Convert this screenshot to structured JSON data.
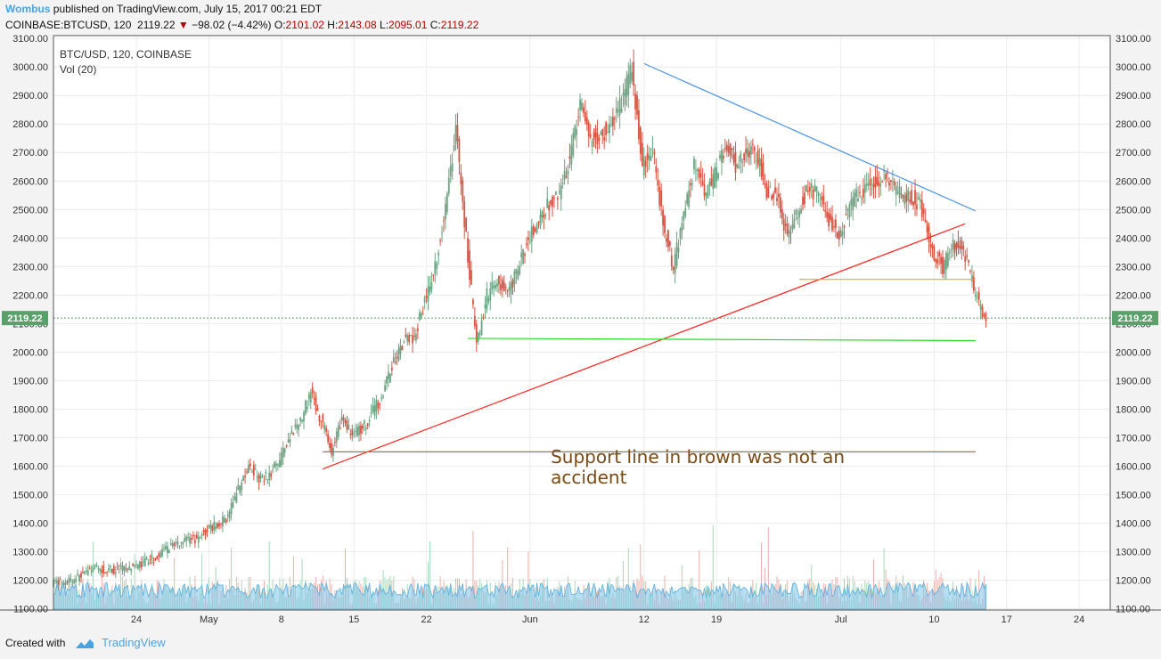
{
  "header": {
    "author": "Wombus",
    "published_text": " published on TradingView.com, July 15, 2017 00:21 EDT",
    "symbol_line": "COINBASE:BTCUSD, 120",
    "last_price": "2119.22",
    "change_arrow": "▼",
    "change": "−98.02 (−4.42%)",
    "o_label": "O:",
    "o_value": "2101.02",
    "h_label": "H:",
    "h_value": "2143.08",
    "l_label": "L:",
    "l_value": "2095.01",
    "c_label": "C:",
    "c_value": "2119.22"
  },
  "footer": {
    "created_with": "Created with",
    "brand": "TradingView"
  },
  "colors": {
    "up": "#6ba583",
    "down": "#d75442",
    "volume": "#7cc3e8",
    "trend_down": "#4a90e2",
    "trend_up": "#ff2222",
    "support_orange": "#ffa500",
    "support_green": "#22dd22",
    "support_brown": "#9c7a4c",
    "price_tag": "#5aa06a",
    "annotation": "#7a4a14"
  },
  "chart_data": {
    "type": "candlestick",
    "title": "BTC/USD, 120, COINBASE",
    "indicator_label": "Vol (20)",
    "x_tick_labels": [
      "24",
      "May",
      "8",
      "15",
      "22",
      "Jun",
      "12",
      "19",
      "Jul",
      "10",
      "17",
      "24"
    ],
    "x_tick_dates": [
      "2017-04-24",
      "2017-05-01",
      "2017-05-08",
      "2017-05-15",
      "2017-05-22",
      "2017-06-01",
      "2017-06-12",
      "2017-06-19",
      "2017-07-01",
      "2017-07-10",
      "2017-07-17",
      "2017-07-24"
    ],
    "x_range": [
      "2017-04-16",
      "2017-07-27"
    ],
    "y_tick_labels": [
      "1100.00",
      "1200.00",
      "1300.00",
      "1400.00",
      "1500.00",
      "1600.00",
      "1700.00",
      "1800.00",
      "1900.00",
      "2000.00",
      "2100.00",
      "2200.00",
      "2300.00",
      "2400.00",
      "2500.00",
      "2600.00",
      "2700.00",
      "2800.00",
      "2900.00",
      "3000.00",
      "3100.00"
    ],
    "ylim": [
      1095,
      3110
    ],
    "last_price": 2119.22,
    "price_path": [
      [
        "2017-04-16",
        1190
      ],
      [
        "2017-04-18",
        1200
      ],
      [
        "2017-04-20",
        1240
      ],
      [
        "2017-04-22",
        1235
      ],
      [
        "2017-04-24",
        1245
      ],
      [
        "2017-04-26",
        1280
      ],
      [
        "2017-04-28",
        1330
      ],
      [
        "2017-04-30",
        1345
      ],
      [
        "2017-05-01",
        1375
      ],
      [
        "2017-05-03",
        1420
      ],
      [
        "2017-05-04",
        1520
      ],
      [
        "2017-05-05",
        1600
      ],
      [
        "2017-05-06",
        1560
      ],
      [
        "2017-05-07",
        1570
      ],
      [
        "2017-05-08",
        1620
      ],
      [
        "2017-05-09",
        1700
      ],
      [
        "2017-05-10",
        1760
      ],
      [
        "2017-05-11",
        1860
      ],
      [
        "2017-05-12",
        1760
      ],
      [
        "2017-05-13",
        1650
      ],
      [
        "2017-05-14",
        1760
      ],
      [
        "2017-05-15",
        1720
      ],
      [
        "2017-05-16",
        1730
      ],
      [
        "2017-05-17",
        1790
      ],
      [
        "2017-05-18",
        1860
      ],
      [
        "2017-05-19",
        1960
      ],
      [
        "2017-05-20",
        2040
      ],
      [
        "2017-05-21",
        2050
      ],
      [
        "2017-05-22",
        2180
      ],
      [
        "2017-05-23",
        2300
      ],
      [
        "2017-05-24",
        2500
      ],
      [
        "2017-05-25",
        2780
      ],
      [
        "2017-05-26",
        2400
      ],
      [
        "2017-05-27",
        2020
      ],
      [
        "2017-05-28",
        2200
      ],
      [
        "2017-05-29",
        2250
      ],
      [
        "2017-05-30",
        2200
      ],
      [
        "2017-05-31",
        2290
      ],
      [
        "2017-06-01",
        2400
      ],
      [
        "2017-06-02",
        2470
      ],
      [
        "2017-06-03",
        2520
      ],
      [
        "2017-06-04",
        2540
      ],
      [
        "2017-06-05",
        2680
      ],
      [
        "2017-06-06",
        2880
      ],
      [
        "2017-06-07",
        2750
      ],
      [
        "2017-06-08",
        2760
      ],
      [
        "2017-06-09",
        2800
      ],
      [
        "2017-06-10",
        2880
      ],
      [
        "2017-06-11",
        2990
      ],
      [
        "2017-06-12",
        2650
      ],
      [
        "2017-06-13",
        2720
      ],
      [
        "2017-06-14",
        2450
      ],
      [
        "2017-06-15",
        2300
      ],
      [
        "2017-06-16",
        2480
      ],
      [
        "2017-06-17",
        2650
      ],
      [
        "2017-06-18",
        2550
      ],
      [
        "2017-06-19",
        2620
      ],
      [
        "2017-06-20",
        2720
      ],
      [
        "2017-06-21",
        2660
      ],
      [
        "2017-06-22",
        2700
      ],
      [
        "2017-06-23",
        2700
      ],
      [
        "2017-06-24",
        2570
      ],
      [
        "2017-06-25",
        2560
      ],
      [
        "2017-06-26",
        2400
      ],
      [
        "2017-06-27",
        2500
      ],
      [
        "2017-06-28",
        2570
      ],
      [
        "2017-06-29",
        2560
      ],
      [
        "2017-06-30",
        2470
      ],
      [
        "2017-07-01",
        2420
      ],
      [
        "2017-07-02",
        2500
      ],
      [
        "2017-07-03",
        2560
      ],
      [
        "2017-07-04",
        2600
      ],
      [
        "2017-07-05",
        2610
      ],
      [
        "2017-07-06",
        2600
      ],
      [
        "2017-07-07",
        2540
      ],
      [
        "2017-07-08",
        2550
      ],
      [
        "2017-07-09",
        2500
      ],
      [
        "2017-07-10",
        2350
      ],
      [
        "2017-07-11",
        2300
      ],
      [
        "2017-07-12",
        2380
      ],
      [
        "2017-07-13",
        2360
      ],
      [
        "2017-07-14",
        2220
      ],
      [
        "2017-07-15",
        2119
      ]
    ],
    "drawings": [
      {
        "name": "descending-trendline",
        "color": "#4a90e2",
        "from": [
          "2017-06-12",
          3012
        ],
        "to": [
          "2017-07-14",
          2495
        ]
      },
      {
        "name": "ascending-trendline",
        "color": "#ff2222",
        "from": [
          "2017-05-12",
          1590
        ],
        "to": [
          "2017-07-13",
          2450
        ]
      },
      {
        "name": "support-line-orange",
        "color": "#ffa500",
        "from": [
          "2017-06-27",
          2255
        ],
        "to": [
          "2017-07-14",
          2255
        ]
      },
      {
        "name": "support-line-green",
        "color": "#22dd22",
        "from": [
          "2017-05-26",
          2048
        ],
        "to": [
          "2017-07-14",
          2040
        ]
      },
      {
        "name": "support-line-brown",
        "color": "#9c7a4c",
        "from": [
          "2017-05-12",
          1650
        ],
        "to": [
          "2017-07-14",
          1650
        ]
      }
    ],
    "annotations": [
      {
        "text": "Support line in brown was not an accident",
        "x": "2017-06-03",
        "y": 1610
      }
    ],
    "volume": {
      "name": "Vol (20)",
      "typical_range": [
        0.2,
        0.6
      ],
      "spikes": [
        "2017-05-26",
        "2017-06-12",
        "2017-06-15"
      ]
    }
  }
}
